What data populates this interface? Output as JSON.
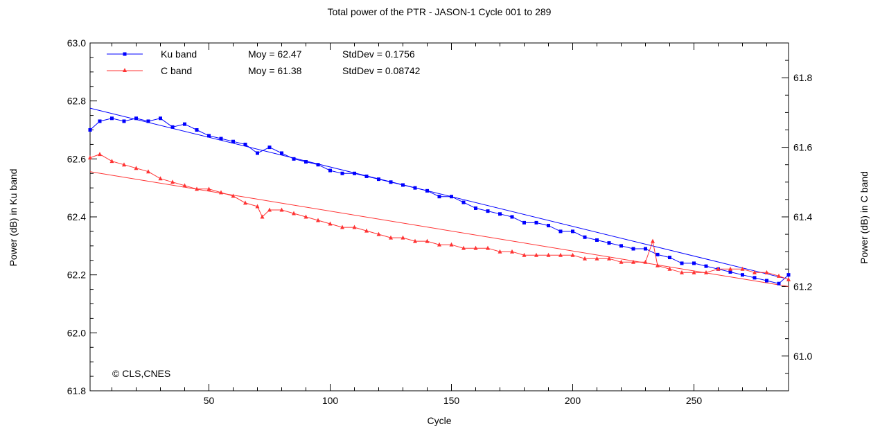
{
  "chart_data": {
    "type": "line",
    "title": "Total power of the PTR - JASON-1 Cycle 001 to 289",
    "xlabel": "Cycle",
    "ylabel_left": "Power (dB) in Ku band",
    "ylabel_right": "Power (dB) in C band",
    "xlim": [
      1,
      289
    ],
    "ylim_left": [
      61.8,
      63.0
    ],
    "ylim_right": [
      60.9,
      61.9
    ],
    "x_ticks": [
      "50",
      "100",
      "150",
      "200",
      "250"
    ],
    "y_ticks_left": [
      "61.8",
      "62.0",
      "62.2",
      "62.4",
      "62.6",
      "62.8",
      "63.0"
    ],
    "y_ticks_right": [
      "61.0",
      "61.2",
      "61.4",
      "61.6",
      "61.8"
    ],
    "grid": false,
    "legend_position": "top-left",
    "credit": "© CLS,CNES",
    "series": [
      {
        "name": "Ku band",
        "axis": "left",
        "color": "#0000ff",
        "marker": "square",
        "stat_mean": "Moy = 62.47",
        "stat_std": "StdDev = 0.1756",
        "fit": {
          "x": [
            1,
            289
          ],
          "y": [
            62.775,
            62.185
          ]
        },
        "x": [
          1,
          5,
          10,
          15,
          20,
          25,
          30,
          35,
          40,
          45,
          50,
          55,
          60,
          65,
          70,
          75,
          80,
          85,
          90,
          95,
          100,
          105,
          110,
          115,
          120,
          125,
          130,
          135,
          140,
          145,
          150,
          155,
          160,
          165,
          170,
          175,
          180,
          185,
          190,
          195,
          200,
          205,
          210,
          215,
          220,
          225,
          230,
          235,
          240,
          245,
          250,
          255,
          260,
          265,
          270,
          275,
          280,
          285,
          289
        ],
        "y": [
          62.7,
          62.73,
          62.74,
          62.73,
          62.74,
          62.73,
          62.74,
          62.71,
          62.72,
          62.7,
          62.68,
          62.67,
          62.66,
          62.65,
          62.62,
          62.64,
          62.62,
          62.6,
          62.59,
          62.58,
          62.56,
          62.55,
          62.55,
          62.54,
          62.53,
          62.52,
          62.51,
          62.5,
          62.49,
          62.47,
          62.47,
          62.45,
          62.43,
          62.42,
          62.41,
          62.4,
          62.38,
          62.38,
          62.37,
          62.35,
          62.35,
          62.33,
          62.32,
          62.31,
          62.3,
          62.29,
          62.29,
          62.27,
          62.26,
          62.24,
          62.24,
          62.23,
          62.22,
          62.21,
          62.2,
          62.19,
          62.18,
          62.17,
          62.2
        ]
      },
      {
        "name": "C band",
        "axis": "right",
        "color": "#ff3333",
        "marker": "triangle",
        "stat_mean": "Moy = 61.38",
        "stat_std": "StdDev = 0.08742",
        "fit": {
          "x": [
            1,
            289
          ],
          "y": [
            61.53,
            61.2
          ]
        },
        "x": [
          1,
          5,
          10,
          15,
          20,
          25,
          30,
          35,
          40,
          45,
          50,
          55,
          60,
          65,
          70,
          72,
          75,
          80,
          85,
          90,
          95,
          100,
          105,
          110,
          115,
          120,
          125,
          130,
          135,
          140,
          145,
          150,
          155,
          160,
          165,
          170,
          175,
          180,
          185,
          190,
          195,
          200,
          205,
          210,
          215,
          220,
          225,
          230,
          233,
          235,
          240,
          245,
          250,
          255,
          260,
          265,
          270,
          275,
          280,
          285,
          289
        ],
        "y": [
          61.57,
          61.58,
          61.56,
          61.55,
          61.54,
          61.53,
          61.51,
          61.5,
          61.49,
          61.48,
          61.48,
          61.47,
          61.46,
          61.44,
          61.43,
          61.4,
          61.42,
          61.42,
          61.41,
          61.4,
          61.39,
          61.38,
          61.37,
          61.37,
          61.36,
          61.35,
          61.34,
          61.34,
          61.33,
          61.33,
          61.32,
          61.32,
          61.31,
          61.31,
          61.31,
          61.3,
          61.3,
          61.29,
          61.29,
          61.29,
          61.29,
          61.29,
          61.28,
          61.28,
          61.28,
          61.27,
          61.27,
          61.27,
          61.33,
          61.26,
          61.25,
          61.24,
          61.24,
          61.24,
          61.25,
          61.25,
          61.25,
          61.24,
          61.24,
          61.23,
          61.22
        ]
      }
    ]
  }
}
